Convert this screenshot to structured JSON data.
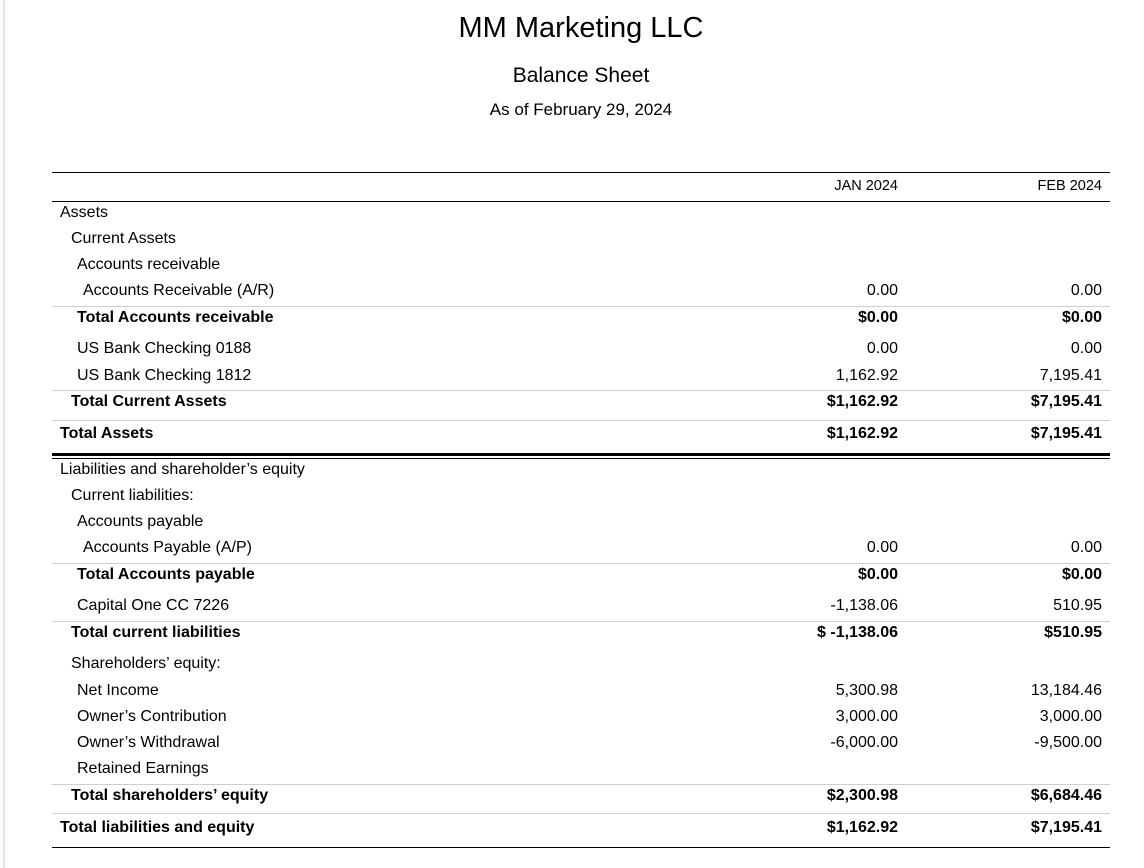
{
  "header": {
    "company": "MM Marketing LLC",
    "report_title": "Balance Sheet",
    "report_date": "As of February 29, 2024"
  },
  "columns": [
    "JAN 2024",
    "FEB 2024"
  ],
  "rows": [
    {
      "label": "Assets",
      "jan": "",
      "feb": ""
    },
    {
      "label": "Current Assets",
      "jan": "",
      "feb": ""
    },
    {
      "label": "Accounts receivable",
      "jan": "",
      "feb": ""
    },
    {
      "label": "Accounts Receivable (A/R)",
      "jan": "0.00",
      "feb": "0.00"
    },
    {
      "label": "Total Accounts receivable",
      "jan": "$0.00",
      "feb": "$0.00"
    },
    {
      "label": "US Bank Checking 0188",
      "jan": "0.00",
      "feb": "0.00"
    },
    {
      "label": "US Bank Checking 1812",
      "jan": "1,162.92",
      "feb": "7,195.41"
    },
    {
      "label": "Total Current Assets",
      "jan": "$1,162.92",
      "feb": "$7,195.41"
    },
    {
      "label": "Total Assets",
      "jan": "$1,162.92",
      "feb": "$7,195.41"
    },
    {
      "label": "Liabilities and shareholder’s equity",
      "jan": "",
      "feb": ""
    },
    {
      "label": "Current liabilities:",
      "jan": "",
      "feb": ""
    },
    {
      "label": "Accounts payable",
      "jan": "",
      "feb": ""
    },
    {
      "label": "Accounts Payable (A/P)",
      "jan": "0.00",
      "feb": "0.00"
    },
    {
      "label": "Total Accounts payable",
      "jan": "$0.00",
      "feb": "$0.00"
    },
    {
      "label": "Capital One CC 7226",
      "jan": "-1,138.06",
      "feb": "510.95"
    },
    {
      "label": "Total current liabilities",
      "jan": "$ -1,138.06",
      "feb": "$510.95"
    },
    {
      "label": "Shareholders’ equity:",
      "jan": "",
      "feb": ""
    },
    {
      "label": "Net Income",
      "jan": "5,300.98",
      "feb": "13,184.46"
    },
    {
      "label": "Owner’s Contribution",
      "jan": "3,000.00",
      "feb": "3,000.00"
    },
    {
      "label": "Owner’s Withdrawal",
      "jan": "-6,000.00",
      "feb": "-9,500.00"
    },
    {
      "label": "Retained Earnings",
      "jan": "",
      "feb": ""
    },
    {
      "label": "Total shareholders’ equity",
      "jan": "$2,300.98",
      "feb": "$6,684.46"
    },
    {
      "label": "Total liabilities and equity",
      "jan": "$1,162.92",
      "feb": "$7,195.41"
    }
  ]
}
